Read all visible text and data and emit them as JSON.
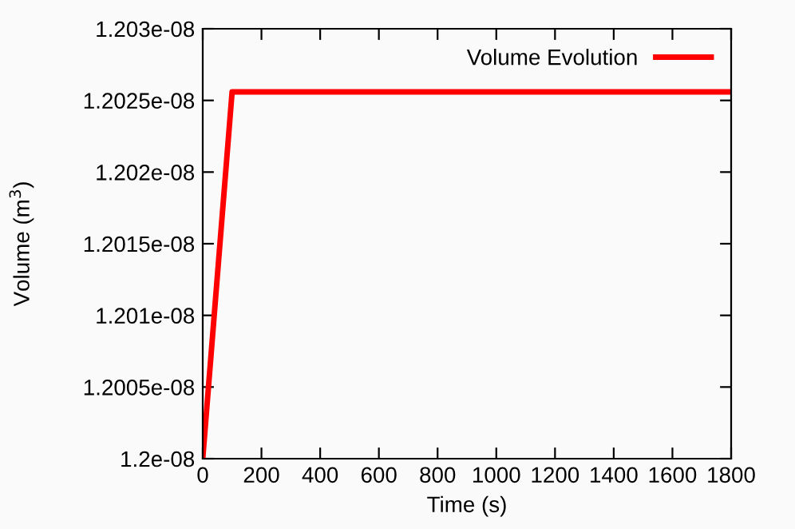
{
  "chart_data": {
    "type": "line",
    "xlabel": "Time (s)",
    "ylabel": "Volume (m$^{3}$)",
    "x": [
      0,
      100,
      1800
    ],
    "series": [
      {
        "name": "Volume Evolution",
        "color": "#ff0000",
        "values": [
          1.2e-08,
          1.20256e-08,
          1.20256e-08
        ]
      }
    ],
    "xlim": [
      0,
      1800
    ],
    "xticks": [
      0,
      200,
      400,
      600,
      800,
      1000,
      1200,
      1400,
      1600,
      1800
    ],
    "ylim": [
      1.2e-08,
      1.203e-08
    ],
    "yticks": [
      {
        "value": 1.2e-08,
        "label": "1.2e-08"
      },
      {
        "value": 1.2005e-08,
        "label": "1.2005e-08"
      },
      {
        "value": 1.201e-08,
        "label": "1.201e-08"
      },
      {
        "value": 1.2015e-08,
        "label": "1.2015e-08"
      },
      {
        "value": 1.202e-08,
        "label": "1.202e-08"
      },
      {
        "value": 1.2025e-08,
        "label": "1.2025e-08"
      },
      {
        "value": 1.203e-08,
        "label": "1.203e-08"
      }
    ],
    "grid": false,
    "legend": "top right",
    "marker": "none",
    "line_style": "solid"
  }
}
